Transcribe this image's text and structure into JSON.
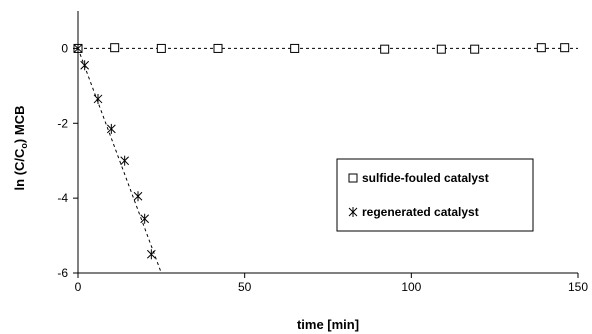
{
  "chart_data": {
    "type": "scatter",
    "xlabel": "time [min]",
    "ylabel_main": "ln (C/C",
    "ylabel_sub": "o",
    "ylabel_tail": ") MCB",
    "xlim": [
      0,
      150
    ],
    "ylim": [
      -6,
      1
    ],
    "xticks": [
      0,
      50,
      100,
      150
    ],
    "yticks": [
      0,
      -2,
      -4,
      -6
    ],
    "xtick_labels": [
      "0",
      "50",
      "100",
      "150"
    ],
    "ytick_labels": [
      "0",
      "-2",
      "-4",
      "-6"
    ],
    "grid": false,
    "legend_position": "center-right",
    "series": [
      {
        "name": "sulfide-fouled catalyst",
        "marker": "square",
        "x": [
          0,
          11,
          25,
          42,
          65,
          92,
          109,
          119,
          139,
          146
        ],
        "y": [
          0,
          0.02,
          0.0,
          0.0,
          0.0,
          -0.02,
          -0.02,
          -0.02,
          0.02,
          0.02
        ],
        "trend": {
          "x": [
            0,
            150
          ],
          "y": [
            0,
            0
          ]
        }
      },
      {
        "name": "regenerated catalyst",
        "marker": "asterisk",
        "x": [
          0,
          2,
          6,
          10,
          14,
          18,
          20,
          22
        ],
        "y": [
          0,
          -0.45,
          -1.35,
          -2.15,
          -3.0,
          -3.95,
          -4.55,
          -5.5
        ],
        "trend": {
          "x": [
            0,
            25
          ],
          "y": [
            0,
            -6
          ]
        }
      }
    ]
  }
}
